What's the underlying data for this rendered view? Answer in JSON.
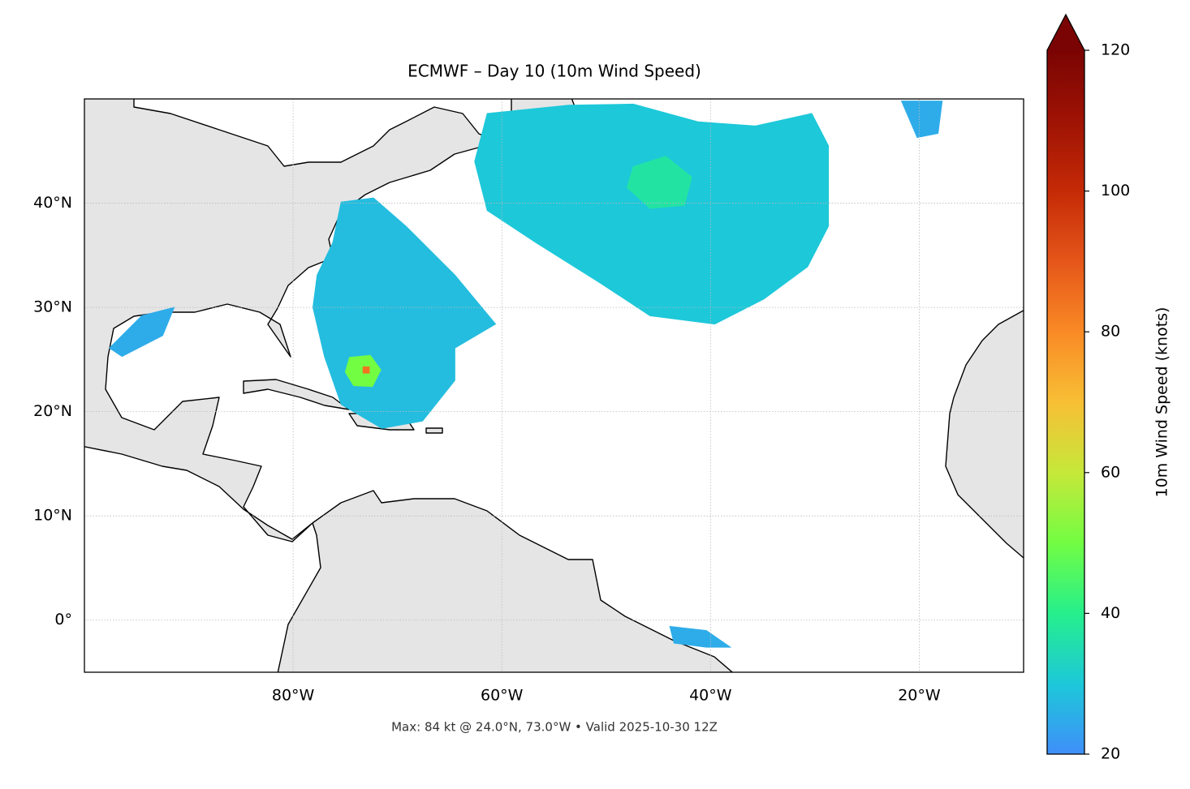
{
  "chart_data": {
    "type": "map",
    "title": "ECMWF – Day 10 (10m Wind Speed)",
    "footer": "Max: 84 kt @ 24.0°N, 73.0°W • Valid 2025-10-30 12Z",
    "xlim": [
      -100,
      -10
    ],
    "ylim": [
      -5,
      50
    ],
    "xticks": [
      {
        "value": -80,
        "label": "80°W"
      },
      {
        "value": -60,
        "label": "60°W"
      },
      {
        "value": -40,
        "label": "40°W"
      },
      {
        "value": -20,
        "label": "20°W"
      }
    ],
    "yticks": [
      {
        "value": 0,
        "label": "0°"
      },
      {
        "value": 10,
        "label": "10°N"
      },
      {
        "value": 20,
        "label": "20°N"
      },
      {
        "value": 30,
        "label": "30°N"
      },
      {
        "value": 40,
        "label": "40°N"
      }
    ],
    "grid": true,
    "colorbar": {
      "label": "10m Wind Speed (knots)",
      "clim": [
        20,
        120
      ],
      "ticks": [
        20,
        40,
        60,
        80,
        100,
        120
      ],
      "extend": "max",
      "colormap": [
        "#3f8ff9",
        "#1dc8d9",
        "#26ef8c",
        "#72fd43",
        "#c6e83a",
        "#f8bf35",
        "#f98a25",
        "#e5561a",
        "#c52a06",
        "#9e1304",
        "#7a0403"
      ]
    },
    "wind_regions": [
      {
        "speed": 30,
        "polygon": [
          [
            -62.6,
            44.0
          ],
          [
            -61.4,
            48.6
          ],
          [
            -53.6,
            49.4
          ],
          [
            -47.4,
            49.5
          ],
          [
            -41.2,
            47.8
          ],
          [
            -35.7,
            47.4
          ],
          [
            -30.3,
            48.6
          ],
          [
            -28.7,
            45.5
          ],
          [
            -28.7,
            37.8
          ],
          [
            -30.7,
            33.9
          ],
          [
            -34.9,
            30.8
          ],
          [
            -39.6,
            28.4
          ],
          [
            -45.8,
            29.2
          ],
          [
            -50.5,
            32.3
          ],
          [
            -56.7,
            36.2
          ],
          [
            -61.4,
            39.3
          ]
        ]
      },
      {
        "speed": 37,
        "polygon": [
          [
            -47.4,
            43.5
          ],
          [
            -44.3,
            44.5
          ],
          [
            -41.8,
            42.5
          ],
          [
            -42.5,
            39.8
          ],
          [
            -45.8,
            39.5
          ],
          [
            -48.0,
            41.5
          ]
        ]
      },
      {
        "speed": 28,
        "polygon": [
          [
            -75.4,
            40.1
          ],
          [
            -72.3,
            40.5
          ],
          [
            -69.2,
            37.8
          ],
          [
            -64.5,
            33.1
          ],
          [
            -60.6,
            28.4
          ],
          [
            -64.5,
            26.1
          ],
          [
            -64.5,
            23.0
          ],
          [
            -67.6,
            19.1
          ],
          [
            -71.5,
            18.4
          ],
          [
            -75.4,
            20.7
          ],
          [
            -77.0,
            25.3
          ],
          [
            -78.1,
            30.0
          ],
          [
            -77.7,
            33.1
          ],
          [
            -76.2,
            36.2
          ]
        ]
      },
      {
        "speed": 50,
        "polygon": [
          [
            -74.6,
            25.2
          ],
          [
            -72.6,
            25.4
          ],
          [
            -71.6,
            24.0
          ],
          [
            -72.4,
            22.4
          ],
          [
            -74.2,
            22.5
          ],
          [
            -75.0,
            23.8
          ]
        ]
      },
      {
        "speed": 84,
        "polygon": [
          [
            -73.3,
            24.3
          ],
          [
            -72.7,
            24.3
          ],
          [
            -72.7,
            23.7
          ],
          [
            -73.3,
            23.7
          ]
        ]
      },
      {
        "speed": 25,
        "polygon": [
          [
            -97.6,
            26.1
          ],
          [
            -94.5,
            29.2
          ],
          [
            -91.4,
            30.0
          ],
          [
            -92.5,
            27.3
          ],
          [
            -96.4,
            25.3
          ]
        ]
      },
      {
        "speed": 25,
        "polygon": [
          [
            -43.9,
            -0.6
          ],
          [
            -40.4,
            -1.0
          ],
          [
            -38.1,
            -2.6
          ],
          [
            -40.4,
            -2.6
          ],
          [
            -43.5,
            -2.2
          ]
        ]
      },
      {
        "speed": 25,
        "polygon": [
          [
            -21.7,
            49.8
          ],
          [
            -17.8,
            49.8
          ],
          [
            -18.2,
            46.7
          ],
          [
            -20.2,
            46.3
          ]
        ]
      }
    ]
  }
}
